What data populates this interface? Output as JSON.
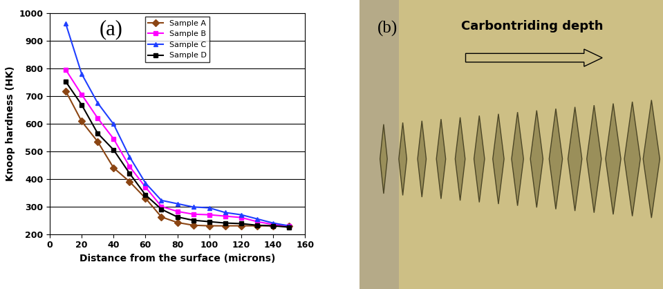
{
  "chart_data": {
    "type": "line",
    "panel_label": "(a)",
    "x_label": "Distance from the surface (microns)",
    "y_label": "Knoop hardness (HK)",
    "x": [
      10,
      20,
      30,
      40,
      50,
      60,
      70,
      80,
      90,
      100,
      110,
      120,
      130,
      140,
      150
    ],
    "series": [
      {
        "name": "Sample A",
        "color": "#8b4513",
        "marker": "diamond",
        "values": [
          718,
          608,
          535,
          440,
          390,
          330,
          262,
          242,
          232,
          230,
          230,
          230,
          230,
          230,
          228
        ]
      },
      {
        "name": "Sample B",
        "color": "#ff00ff",
        "marker": "square",
        "values": [
          795,
          705,
          620,
          545,
          445,
          370,
          300,
          282,
          272,
          270,
          265,
          260,
          245,
          235,
          230
        ]
      },
      {
        "name": "Sample C",
        "color": "#1f3fff",
        "marker": "triangle",
        "values": [
          962,
          780,
          675,
          598,
          480,
          385,
          322,
          310,
          298,
          295,
          278,
          270,
          255,
          240,
          230
        ]
      },
      {
        "name": "Sample D",
        "color": "#000000",
        "marker": "square",
        "values": [
          752,
          668,
          565,
          505,
          420,
          342,
          290,
          262,
          250,
          245,
          240,
          238,
          232,
          230,
          225
        ]
      }
    ],
    "xlim": [
      0,
      160
    ],
    "xticks": [
      0,
      20,
      40,
      60,
      80,
      100,
      120,
      140,
      160
    ],
    "ylim": [
      200,
      1000
    ],
    "yticks": [
      200,
      300,
      400,
      500,
      600,
      700,
      800,
      900,
      1000
    ],
    "grid": true,
    "legend": "upper center"
  },
  "image": {
    "label": "(b)",
    "arrow_text": "Carbontriding depth"
  }
}
